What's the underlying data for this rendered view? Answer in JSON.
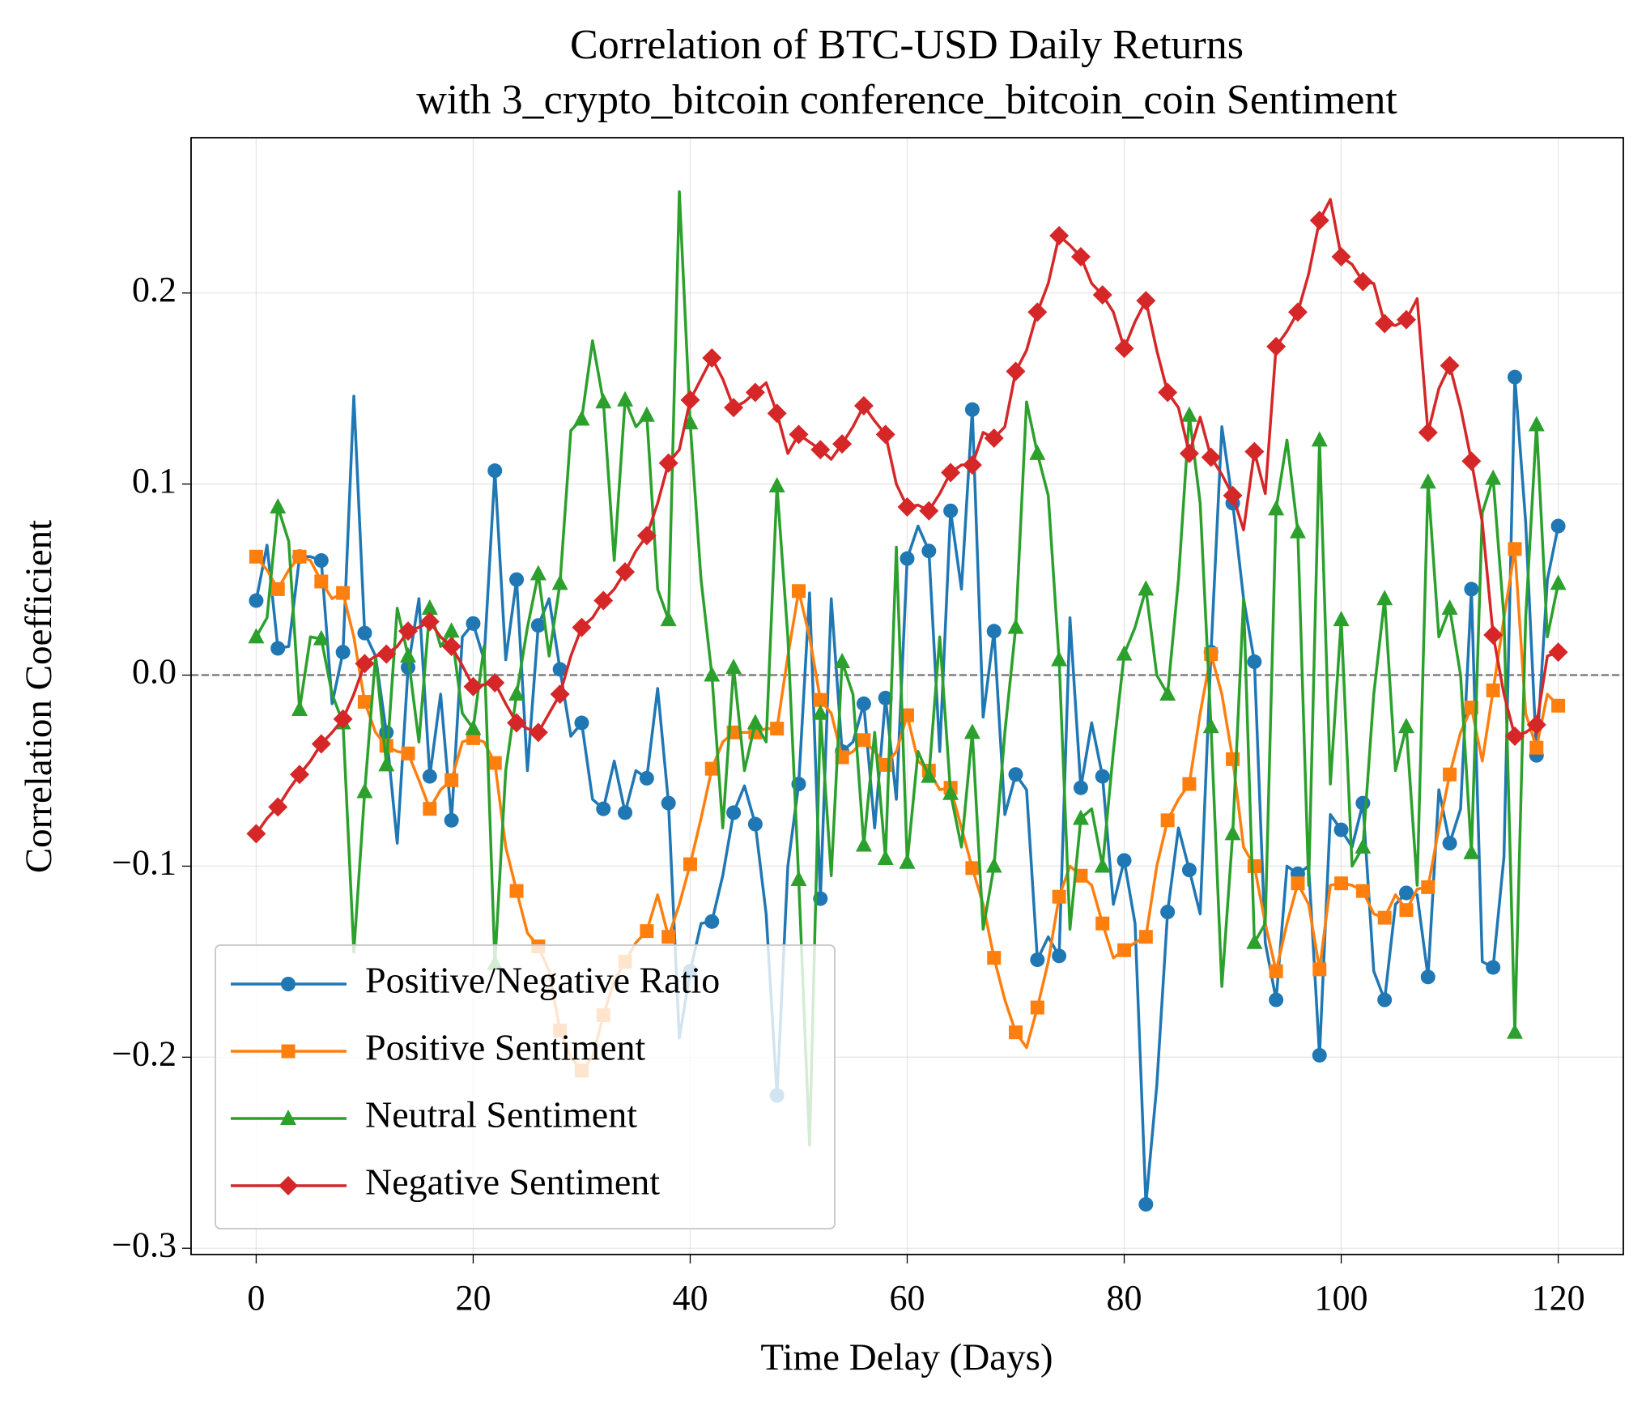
{
  "chart_data": {
    "type": "line",
    "title": [
      "Correlation of BTC-USD Daily Returns",
      "with 3_crypto_bitcoin conference_bitcoin_coin Sentiment"
    ],
    "xlabel": "Time Delay (Days)",
    "ylabel": "Correlation Coefficient",
    "x": [
      0,
      1,
      2,
      3,
      4,
      5,
      6,
      7,
      8,
      9,
      10,
      11,
      12,
      13,
      14,
      15,
      16,
      17,
      18,
      19,
      20,
      21,
      22,
      23,
      24,
      25,
      26,
      27,
      28,
      29,
      30,
      31,
      32,
      33,
      34,
      35,
      36,
      37,
      38,
      39,
      40,
      41,
      42,
      43,
      44,
      45,
      46,
      47,
      48,
      49,
      50,
      51,
      52,
      53,
      54,
      55,
      56,
      57,
      58,
      59,
      60,
      61,
      62,
      63,
      64,
      65,
      66,
      67,
      68,
      69,
      70,
      71,
      72,
      73,
      74,
      75,
      76,
      77,
      78,
      79,
      80,
      81,
      82,
      83,
      84,
      85,
      86,
      87,
      88,
      89,
      90,
      91,
      92,
      93,
      94,
      95,
      96,
      97,
      98,
      99,
      100,
      101,
      102,
      103,
      104,
      105,
      106,
      107,
      108,
      109,
      110,
      111,
      112,
      113,
      114,
      115,
      116,
      117,
      118,
      119,
      120
    ],
    "series": [
      {
        "name": "Positive/Negative Ratio",
        "color": "#1f77b4",
        "marker": "circle",
        "values": [
          0.039,
          0.068,
          0.014,
          0.015,
          0.062,
          0.062,
          0.06,
          -0.015,
          0.012,
          0.146,
          0.022,
          0.01,
          -0.03,
          -0.088,
          0.004,
          0.04,
          -0.053,
          -0.01,
          -0.076,
          0.02,
          0.027,
          0.008,
          0.107,
          0.008,
          0.05,
          -0.05,
          0.026,
          0.04,
          0.003,
          -0.032,
          -0.025,
          -0.065,
          -0.07,
          -0.045,
          -0.072,
          -0.05,
          -0.054,
          -0.007,
          -0.067,
          -0.19,
          -0.155,
          -0.13,
          -0.129,
          -0.105,
          -0.072,
          -0.058,
          -0.078,
          -0.125,
          -0.22,
          -0.1,
          -0.057,
          0.043,
          -0.117,
          0.04,
          -0.04,
          -0.035,
          -0.015,
          -0.08,
          -0.012,
          -0.065,
          0.061,
          0.078,
          0.065,
          -0.04,
          0.086,
          0.045,
          0.139,
          -0.022,
          0.023,
          -0.073,
          -0.052,
          -0.06,
          -0.149,
          -0.137,
          -0.147,
          0.03,
          -0.059,
          -0.025,
          -0.053,
          -0.12,
          -0.097,
          -0.13,
          -0.277,
          -0.215,
          -0.124,
          -0.08,
          -0.102,
          -0.125,
          0.012,
          0.13,
          0.09,
          0.04,
          0.007,
          -0.14,
          -0.17,
          -0.1,
          -0.104,
          -0.1,
          -0.199,
          -0.073,
          -0.081,
          -0.09,
          -0.067,
          -0.155,
          -0.17,
          -0.12,
          -0.114,
          -0.115,
          -0.158,
          -0.06,
          -0.088,
          -0.07,
          0.045,
          -0.15,
          -0.153,
          -0.095,
          0.156,
          0.08,
          -0.042,
          0.05,
          0.078
        ]
      },
      {
        "name": "Positive Sentiment",
        "color": "#ff7f0e",
        "marker": "square",
        "values": [
          0.062,
          0.055,
          0.045,
          0.055,
          0.062,
          0.06,
          0.049,
          0.04,
          0.043,
          0.02,
          -0.014,
          -0.03,
          -0.037,
          -0.04,
          -0.041,
          -0.055,
          -0.07,
          -0.06,
          -0.055,
          -0.035,
          -0.033,
          -0.035,
          -0.046,
          -0.09,
          -0.113,
          -0.135,
          -0.142,
          -0.155,
          -0.186,
          -0.2,
          -0.207,
          -0.2,
          -0.178,
          -0.16,
          -0.15,
          -0.14,
          -0.134,
          -0.115,
          -0.137,
          -0.12,
          -0.099,
          -0.075,
          -0.049,
          -0.035,
          -0.03,
          -0.03,
          -0.03,
          -0.028,
          -0.028,
          0.01,
          0.044,
          0.02,
          -0.013,
          -0.02,
          -0.043,
          -0.04,
          -0.034,
          -0.04,
          -0.047,
          -0.04,
          -0.021,
          -0.045,
          -0.05,
          -0.06,
          -0.059,
          -0.08,
          -0.101,
          -0.12,
          -0.148,
          -0.17,
          -0.187,
          -0.195,
          -0.174,
          -0.15,
          -0.116,
          -0.1,
          -0.105,
          -0.11,
          -0.13,
          -0.148,
          -0.144,
          -0.14,
          -0.137,
          -0.1,
          -0.076,
          -0.065,
          -0.057,
          -0.02,
          0.011,
          -0.01,
          -0.044,
          -0.09,
          -0.1,
          -0.13,
          -0.155,
          -0.13,
          -0.109,
          -0.12,
          -0.154,
          -0.11,
          -0.109,
          -0.11,
          -0.113,
          -0.125,
          -0.127,
          -0.115,
          -0.123,
          -0.112,
          -0.111,
          -0.08,
          -0.052,
          -0.03,
          -0.017,
          -0.045,
          -0.008,
          0.03,
          0.066,
          -0.02,
          -0.038,
          -0.01,
          -0.016
        ]
      },
      {
        "name": "Neutral Sentiment",
        "color": "#2ca02c",
        "marker": "triangle",
        "values": [
          0.02,
          0.03,
          0.088,
          0.07,
          -0.018,
          0.02,
          0.019,
          -0.01,
          -0.025,
          -0.145,
          -0.061,
          0.01,
          -0.047,
          0.035,
          0.01,
          -0.035,
          0.035,
          0.015,
          0.023,
          -0.02,
          -0.028,
          0.015,
          -0.151,
          -0.05,
          -0.01,
          0.025,
          0.053,
          0.01,
          0.048,
          0.128,
          0.134,
          0.175,
          0.143,
          0.06,
          0.144,
          0.13,
          0.136,
          0.045,
          0.029,
          0.253,
          0.132,
          0.05,
          0.0,
          -0.08,
          0.004,
          -0.05,
          -0.025,
          -0.035,
          0.099,
          0.02,
          -0.107,
          -0.246,
          -0.02,
          -0.105,
          0.007,
          -0.01,
          -0.089,
          -0.03,
          -0.096,
          0.067,
          -0.098,
          -0.04,
          -0.053,
          0.02,
          -0.062,
          -0.09,
          -0.03,
          -0.133,
          -0.1,
          -0.03,
          0.025,
          0.143,
          0.116,
          0.094,
          0.008,
          -0.133,
          -0.075,
          -0.07,
          -0.1,
          -0.04,
          0.011,
          0.025,
          0.045,
          0.0,
          -0.01,
          0.05,
          0.136,
          0.09,
          -0.027,
          -0.163,
          -0.083,
          0.04,
          -0.14,
          -0.13,
          0.087,
          0.123,
          0.075,
          -0.11,
          0.123,
          -0.057,
          0.029,
          -0.1,
          -0.09,
          -0.01,
          0.04,
          -0.05,
          -0.027,
          -0.11,
          0.101,
          0.02,
          0.035,
          0.0,
          -0.093,
          0.085,
          0.103,
          0.03,
          -0.187,
          0.03,
          0.131,
          0.02,
          0.048
        ]
      },
      {
        "name": "Negative Sentiment",
        "color": "#d62728",
        "marker": "diamond",
        "values": [
          -0.083,
          -0.075,
          -0.069,
          -0.06,
          -0.052,
          -0.045,
          -0.036,
          -0.03,
          -0.023,
          -0.01,
          0.006,
          0.01,
          0.011,
          0.015,
          0.023,
          0.025,
          0.028,
          0.02,
          0.015,
          0.005,
          -0.006,
          -0.005,
          -0.004,
          -0.015,
          -0.025,
          -0.028,
          -0.03,
          -0.02,
          -0.01,
          0.01,
          0.025,
          0.03,
          0.039,
          0.045,
          0.054,
          0.065,
          0.073,
          0.09,
          0.111,
          0.118,
          0.144,
          0.155,
          0.166,
          0.155,
          0.14,
          0.143,
          0.148,
          0.153,
          0.137,
          0.116,
          0.126,
          0.122,
          0.118,
          0.113,
          0.121,
          0.13,
          0.141,
          0.133,
          0.126,
          0.1,
          0.088,
          0.089,
          0.086,
          0.095,
          0.106,
          0.11,
          0.11,
          0.127,
          0.124,
          0.13,
          0.159,
          0.17,
          0.19,
          0.205,
          0.23,
          0.225,
          0.219,
          0.205,
          0.199,
          0.19,
          0.171,
          0.185,
          0.196,
          0.17,
          0.148,
          0.14,
          0.116,
          0.135,
          0.114,
          0.105,
          0.094,
          0.076,
          0.117,
          0.095,
          0.172,
          0.18,
          0.19,
          0.21,
          0.238,
          0.249,
          0.219,
          0.215,
          0.206,
          0.205,
          0.184,
          0.183,
          0.186,
          0.197,
          0.127,
          0.15,
          0.162,
          0.14,
          0.112,
          0.08,
          0.021,
          -0.01,
          -0.032,
          -0.03,
          -0.026,
          0.01,
          0.012
        ]
      }
    ],
    "markevery": 2,
    "xlim": [
      -6,
      126
    ],
    "xticks": [
      0,
      20,
      40,
      60,
      80,
      100,
      120
    ],
    "ylim": [
      -0.3033,
      0.2813
    ],
    "yticks": [
      {
        "value": -0.3,
        "label": "−0.3"
      },
      {
        "value": -0.2,
        "label": "−0.2"
      },
      {
        "value": -0.1,
        "label": "−0.1"
      },
      {
        "value": 0,
        "label": "0.0"
      },
      0.1,
      0.2
    ],
    "reference_line": 0,
    "grid": true,
    "legend": "lower left"
  }
}
